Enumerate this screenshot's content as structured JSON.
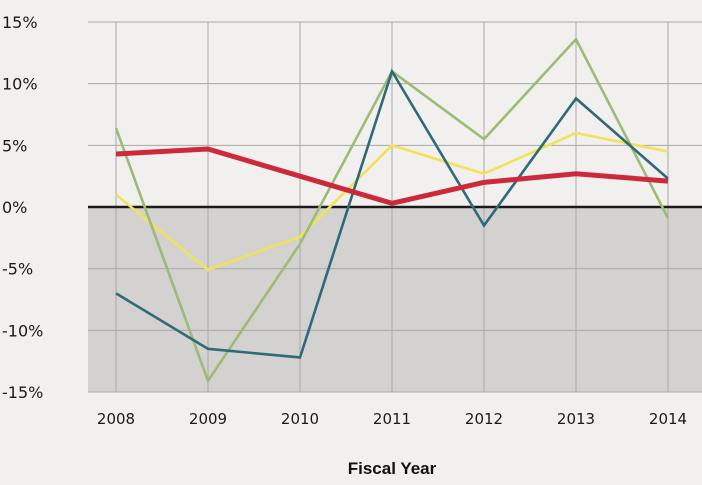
{
  "chart_data": {
    "type": "line",
    "title": "",
    "xlabel": "Fiscal Year",
    "ylabel": "",
    "categories": [
      "2008",
      "2009",
      "2010",
      "2011",
      "2012",
      "2013",
      "2014"
    ],
    "ylim": [
      -15,
      15
    ],
    "yticks": [
      15,
      10,
      5,
      0,
      -5,
      -10,
      -15
    ],
    "ytick_labels": [
      "15%",
      "10%",
      "5%",
      "0%",
      "-5%",
      "-10%",
      "-15%"
    ],
    "grid": true,
    "negative_region_shaded": true,
    "series": [
      {
        "color": "#cc2a3a",
        "values": [
          4.3,
          4.7,
          2.5,
          0.3,
          2.0,
          2.7,
          2.1
        ]
      },
      {
        "color": "#f2e25a",
        "values": [
          1.0,
          -5.1,
          -2.4,
          5.0,
          2.7,
          6.0,
          4.5
        ]
      },
      {
        "color": "#2e6a78",
        "values": [
          -7.0,
          -11.5,
          -12.2,
          11.0,
          -1.5,
          8.8,
          2.3
        ]
      },
      {
        "color": "#9cbb74",
        "values": [
          6.4,
          -14.1,
          -3.0,
          11.0,
          5.5,
          13.6,
          -0.9
        ]
      }
    ]
  }
}
